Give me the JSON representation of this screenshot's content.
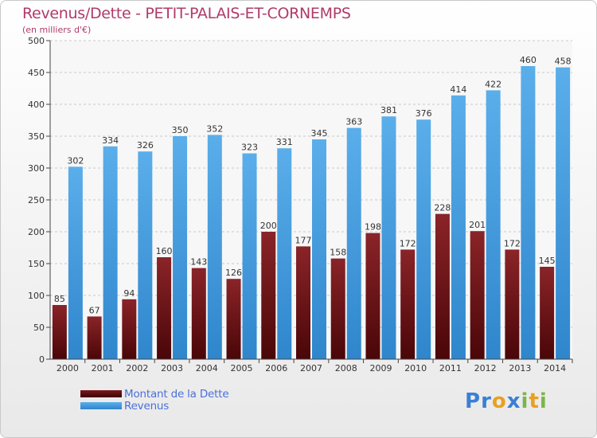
{
  "title": "Revenus/Dette - PETIT-PALAIS-ET-CORNEMPS",
  "subtitle": "(en milliers d'€)",
  "logo": {
    "text": "Proxiti",
    "letters": [
      "P",
      "r",
      "o",
      "x",
      "i",
      "t",
      "i"
    ],
    "colors": [
      "#3b7fd4",
      "#3b7fd4",
      "#e8a020",
      "#3b7fd4",
      "#7ab648",
      "#e8a020",
      "#7ab648"
    ]
  },
  "chart_data": {
    "type": "bar",
    "categories": [
      "2000",
      "2001",
      "2002",
      "2003",
      "2004",
      "2005",
      "2006",
      "2007",
      "2008",
      "2009",
      "2010",
      "2011",
      "2012",
      "2013",
      "2014"
    ],
    "series": [
      {
        "name": "Montant de la Dette",
        "color": "#7a1a1e",
        "values": [
          85,
          67,
          94,
          160,
          143,
          126,
          200,
          177,
          158,
          198,
          172,
          228,
          201,
          172,
          145
        ]
      },
      {
        "name": "Revenus",
        "color": "#4aa3e6",
        "values": [
          302,
          334,
          326,
          350,
          352,
          323,
          331,
          345,
          363,
          381,
          376,
          414,
          422,
          460,
          458
        ]
      }
    ],
    "ylim": [
      0,
      500
    ],
    "yticks": [
      0,
      50,
      100,
      150,
      200,
      250,
      300,
      350,
      400,
      450,
      500
    ],
    "grid": true,
    "legend_position": "bottom-left"
  }
}
